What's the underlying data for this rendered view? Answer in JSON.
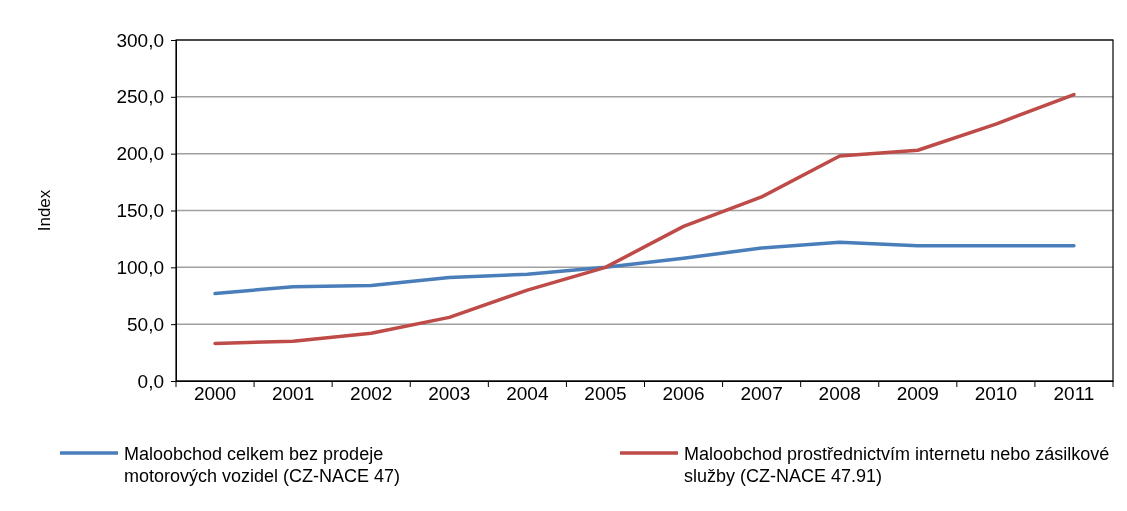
{
  "chart_data": {
    "type": "line",
    "ylabel": "Index",
    "categories": [
      "2000",
      "2001",
      "2002",
      "2003",
      "2004",
      "2005",
      "2006",
      "2007",
      "2008",
      "2009",
      "2010",
      "2011"
    ],
    "series": [
      {
        "name": "Maloobchod celkem bez prodeje motorových vozidel (CZ-NACE 47)",
        "color": "#4a7ebb",
        "values": [
          77,
          83,
          84,
          91,
          94,
          100,
          108,
          117,
          122,
          119,
          119,
          119
        ]
      },
      {
        "name": "Maloobchod prostřednictvím internetu nebo zásilkové služby (CZ-NACE 47.91)",
        "color": "#be4b48",
        "values": [
          33,
          35,
          42,
          56,
          80,
          100,
          136,
          162,
          198,
          203,
          226,
          252
        ]
      }
    ],
    "ylim": [
      0,
      300
    ],
    "yticks": [
      {
        "value": 0,
        "label": "0,0"
      },
      {
        "value": 50,
        "label": "50,0"
      },
      {
        "value": 100,
        "label": "100,0"
      },
      {
        "value": 150,
        "label": "150,0"
      },
      {
        "value": 200,
        "label": "200,0"
      },
      {
        "value": 250,
        "label": "250,0"
      },
      {
        "value": 300,
        "label": "300,0"
      }
    ],
    "grid": "y",
    "legend": "bottom",
    "marker": "none",
    "line_style": "solid"
  }
}
